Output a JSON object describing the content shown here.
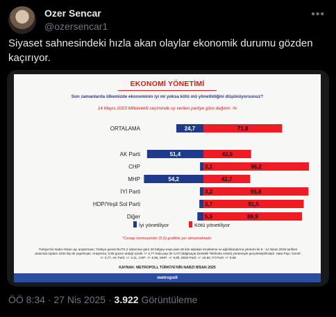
{
  "author": {
    "name": "Ozer Sencar",
    "handle": "@ozersencar1"
  },
  "tweet": {
    "text": "Siyaset sahnesindeki hızla akan olaylar ekonomik durumu gözden kaçırıyor."
  },
  "meta": {
    "time": "ÖÖ 8:34",
    "date": "27 Nis 2025",
    "views": "3.922",
    "views_label": "Görüntüleme",
    "separator": "·"
  },
  "icons": {
    "more": "more-icon"
  },
  "chart_data": {
    "type": "bar",
    "title": "EKONOMİ YÖNETİMİ",
    "question": "Son zamanlarda ülkemizde ekonominin iyi mi yoksa kötü mü yönetildiğini düşünüyorsunuz?",
    "subtitle": "14 Mayıs 2023 Milletvekili seçiminde oy verilen partiye göre dağılım -%",
    "categories": [
      "ORTALAMA",
      "AK Parti",
      "CHP",
      "MHP",
      "İYİ Parti",
      "HDP/Yeşil Sol Parti",
      "Diğer"
    ],
    "series": [
      {
        "name": "İyi yönetiliyor",
        "color": "#1f3a8a",
        "values": [
          24.7,
          51.4,
          3.1,
          54.2,
          3.2,
          3.7,
          5.5
        ],
        "labels": [
          "24,7",
          "51,4",
          "3,1",
          "54,2",
          "3,2",
          "3,7",
          "5,5"
        ]
      },
      {
        "name": "Kötü yönetiliyor",
        "color": "#ee1c25",
        "values": [
          71.8,
          43.5,
          96.2,
          42.7,
          95.8,
          91.5,
          89.9
        ],
        "labels": [
          "71,8",
          "43,5",
          "96,2",
          "42,7",
          "95,8",
          "91,5",
          "89,9"
        ]
      }
    ],
    "note": "*Cevap vermeyenler (5,5) grafikte yer almamaktadır.",
    "methodology": "Türkiye'nin Nabzı Nisan ayı araştırması; Türkiye geneli NUTS 2 sistemine göre 26 bölgeyi esas alan 28 ilde tabakalı örnekleme ve ağırlıklandırma yöntemi ile 8 - 12 Nisan 2025 tarihleri arasında toplam 2202 kişi ile yapılmıştır. Araştırma; 0,95 güven aralığı içinde +/- 2,77 hata payı ile CATI (Bilgisayar Destekli Telefonla Anket) yöntemiyle gerçekleştirilmiştir. Hata Payı: Genel: +/- 2,77, AK Parti: +/- 3,11, CHP: +/- 5,95, MHP: +/- 9,80, DEM Parti: +/- 10,60, İYİ Parti: +/- 9,95",
    "source": "KAYNAK: METROPOLL TÜRKİYE'NİN NABZI NİSAN 2025",
    "brand": "metropoll"
  }
}
